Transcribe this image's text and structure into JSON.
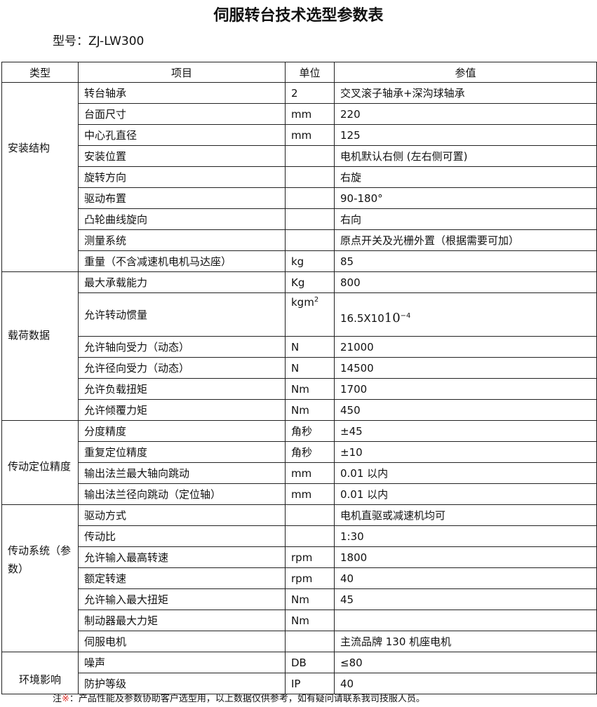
{
  "title": "伺服转台技术选型参数表",
  "model": "型号：ZJ-LW300",
  "headers": {
    "category": "类型",
    "item": "项目",
    "unit": "单位",
    "value": "参值"
  },
  "groups": [
    {
      "category": "安装结构",
      "rows": [
        {
          "item": "转台轴承",
          "unit": "2",
          "value": "交叉滚子轴承+深沟球轴承"
        },
        {
          "item": "台面尺寸",
          "unit": "mm",
          "value": "220"
        },
        {
          "item": "中心孔直径",
          "unit": "mm",
          "value": "125"
        },
        {
          "item": "安装位置",
          "unit": "",
          "value": "电机默认右侧 (左右侧可置)"
        },
        {
          "item": "旋转方向",
          "unit": "",
          "value": "右旋"
        },
        {
          "item": "驱动布置",
          "unit": "",
          "value": "90-180°"
        },
        {
          "item": "凸轮曲线旋向",
          "unit": "",
          "value": "右向"
        },
        {
          "item": "测量系统",
          "unit": "",
          "value": "原点开关及光栅外置（根据需要可加）"
        },
        {
          "item": "重量（不含减速机电机马达座）",
          "unit": "kg",
          "value": "85"
        }
      ]
    },
    {
      "category": "载荷数据",
      "rows": [
        {
          "item": "最大承载能力",
          "unit": "Kg",
          "value": "800"
        },
        {
          "item": "允许转动惯量",
          "unit": "kgm",
          "unit_sup": "2",
          "value": "16.5X10",
          "value_big": "10",
          "value_sup": "−4"
        },
        {
          "item": "允许轴向受力（动态）",
          "unit": "N",
          "value": "21000"
        },
        {
          "item": "允许径向受力（动态）",
          "unit": "N",
          "value": "14500"
        },
        {
          "item": "允许负载扭矩",
          "unit": "Nm",
          "value": "1700"
        },
        {
          "item": "允许倾覆力矩",
          "unit": "Nm",
          "value": "450"
        }
      ]
    },
    {
      "category": "传动定位精度",
      "rows": [
        {
          "item": "分度精度",
          "unit": "角秒",
          "value": "±45"
        },
        {
          "item": "重复定位精度",
          "unit": "角秒",
          "value": "±10"
        },
        {
          "item": "输出法兰最大轴向跳动",
          "unit": "mm",
          "value": "0.01 以内"
        },
        {
          "item": "输出法兰径向跳动（定位轴）",
          "unit": "mm",
          "value": "0.01 以内"
        }
      ]
    },
    {
      "category": "传动系统（参数）",
      "rows": [
        {
          "item": "驱动方式",
          "unit": "",
          "value": "电机直驱或减速机均可"
        },
        {
          "item": "传动比",
          "unit": "",
          "value": "1:30"
        },
        {
          "item": "允许输入最高转速",
          "unit": "rpm",
          "value": "1800"
        },
        {
          "item": "额定转速",
          "unit": "rpm",
          "value": "40"
        },
        {
          "item": "允许输入最大扭矩",
          "unit": "Nm",
          "value": "45"
        },
        {
          "item": "制动器最大力矩",
          "unit": "Nm",
          "value": ""
        },
        {
          "item": "伺服电机",
          "unit": "",
          "value": "主流品牌 130 机座电机"
        }
      ]
    },
    {
      "category": "环境影响",
      "rows": [
        {
          "item": "噪声",
          "unit": "DB",
          "value": "≤80"
        },
        {
          "item": "防护等级",
          "unit": "IP",
          "value": "40"
        }
      ]
    }
  ],
  "note": {
    "prefix": "注",
    "mark": "※",
    "text": "：产品性能及参数协助客户选型用，以上数据仅供参考，如有疑问请联系我司技服人员。",
    "mark_color": "#e0302a"
  }
}
